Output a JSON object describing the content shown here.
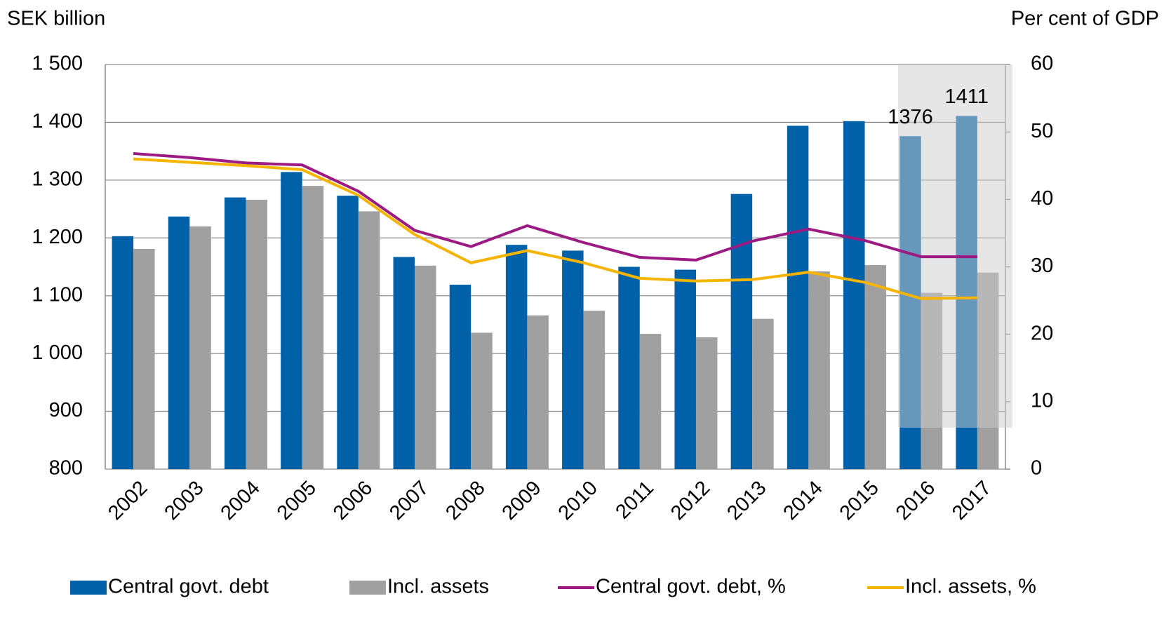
{
  "chart_data": {
    "type": "bar",
    "y_label": "SEK billion",
    "y2_label": "Per cent of GDP",
    "categories": [
      "2002",
      "2003",
      "2004",
      "2005",
      "2006",
      "2007",
      "2008",
      "2009",
      "2010",
      "2011",
      "2012",
      "2013",
      "2014",
      "2015",
      "2016",
      "2017"
    ],
    "series": [
      {
        "name": "Central govt. debt",
        "type": "bar",
        "color": "#0060a8",
        "values": [
          1203,
          1237,
          1270,
          1314,
          1273,
          1167,
          1119,
          1188,
          1178,
          1150,
          1145,
          1276,
          1394,
          1402,
          1376,
          1411
        ],
        "value_labels": [
          null,
          null,
          null,
          null,
          null,
          null,
          null,
          null,
          null,
          null,
          null,
          null,
          null,
          null,
          "1376",
          "1411"
        ]
      },
      {
        "name": "Incl. assets",
        "type": "bar",
        "color": "#a0a0a0",
        "values": [
          1181,
          1220,
          1266,
          1290,
          1246,
          1152,
          1036,
          1066,
          1074,
          1034,
          1028,
          1060,
          1142,
          1153,
          1105,
          1140
        ]
      },
      {
        "name": "Central govt. debt, %",
        "type": "line",
        "axis": "y2",
        "color": "#9b1b83",
        "values": [
          46.8,
          46.2,
          45.4,
          45.1,
          41.2,
          35.4,
          33.0,
          36.1,
          33.6,
          31.4,
          31.0,
          33.8,
          35.6,
          33.9,
          31.5,
          31.5
        ]
      },
      {
        "name": "Incl. assets, %",
        "type": "line",
        "axis": "y2",
        "color": "#f5b400",
        "values": [
          46.0,
          45.5,
          45.0,
          44.4,
          40.6,
          34.8,
          30.6,
          32.4,
          30.6,
          28.3,
          27.9,
          28.1,
          29.2,
          27.7,
          25.3,
          25.4
        ]
      }
    ],
    "ylim": [
      800,
      1500
    ],
    "yticks": [
      800,
      900,
      {
        "value": 1000,
        "label": "1 000"
      },
      {
        "value": 1100,
        "label": "1 100"
      },
      {
        "value": 1200,
        "label": "1 200"
      },
      {
        "value": 1300,
        "label": "1 300"
      },
      {
        "value": 1400,
        "label": "1 400"
      },
      {
        "value": 1500,
        "label": "1 500"
      }
    ],
    "y2lim": [
      0,
      60
    ],
    "y2ticks": [
      0,
      10,
      20,
      30,
      40,
      50,
      60
    ],
    "grid": true,
    "legend": "bottom"
  }
}
